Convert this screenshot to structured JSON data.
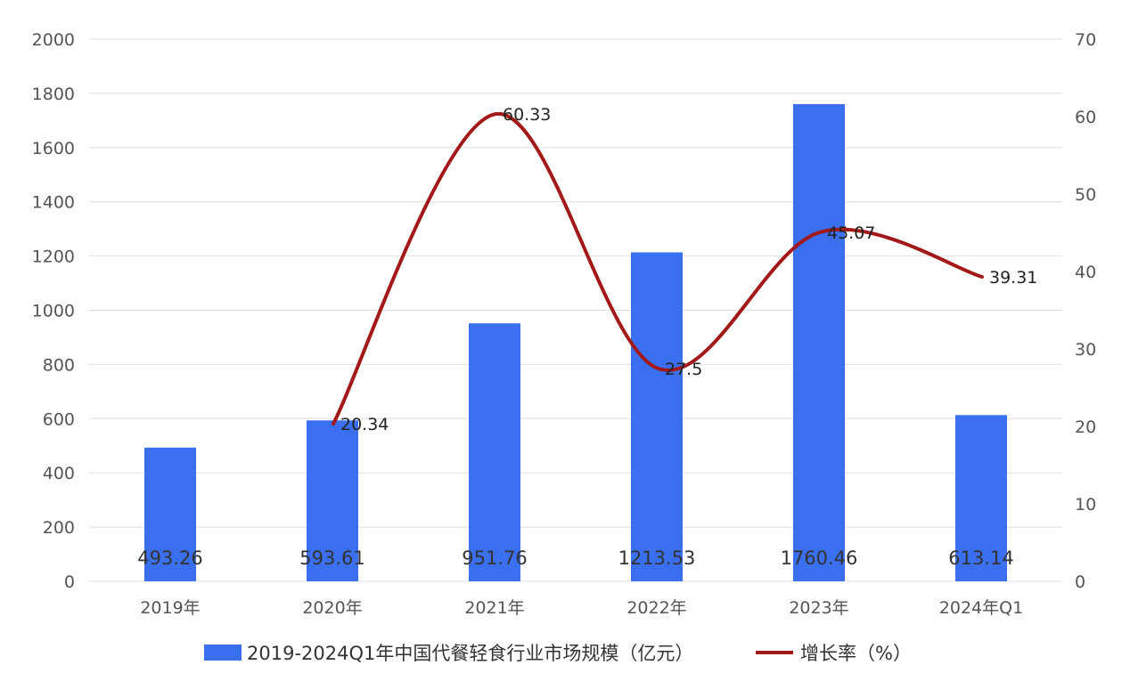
{
  "chart_data": {
    "type": "bar",
    "categories": [
      "2019年",
      "2020年",
      "2021年",
      "2022年",
      "2023年",
      "2024年Q1"
    ],
    "series": [
      {
        "name": "2019-2024Q1年中国代餐轻食行业市场规模（亿元）",
        "type": "bar",
        "axis": "left",
        "color": "#3a6ff0",
        "values": [
          493.26,
          593.61,
          951.76,
          1213.53,
          1760.46,
          613.14
        ],
        "labels": [
          "493.26",
          "593.61",
          "951.76",
          "1213.53",
          "1760.46",
          "613.14"
        ]
      },
      {
        "name": "增长率（%）",
        "type": "line",
        "axis": "right",
        "color": "#a31818",
        "smooth": true,
        "values": [
          null,
          20.34,
          60.33,
          27.5,
          45.07,
          39.31
        ],
        "labels": [
          "",
          "20.34",
          "60.33",
          "27.5",
          "45.07",
          "39.31"
        ]
      }
    ],
    "y_left": {
      "min": 0,
      "max": 2000,
      "ticks": [
        "0",
        "200",
        "400",
        "600",
        "800",
        "1000",
        "1200",
        "1400",
        "1600",
        "1800",
        "2000"
      ]
    },
    "y_right": {
      "min": 0,
      "max": 70,
      "ticks": [
        "0",
        "10",
        "20",
        "30",
        "40",
        "50",
        "60",
        "70"
      ]
    },
    "grid": true,
    "legend": "bottom",
    "title": "",
    "xlabel": "",
    "ylabel": ""
  }
}
